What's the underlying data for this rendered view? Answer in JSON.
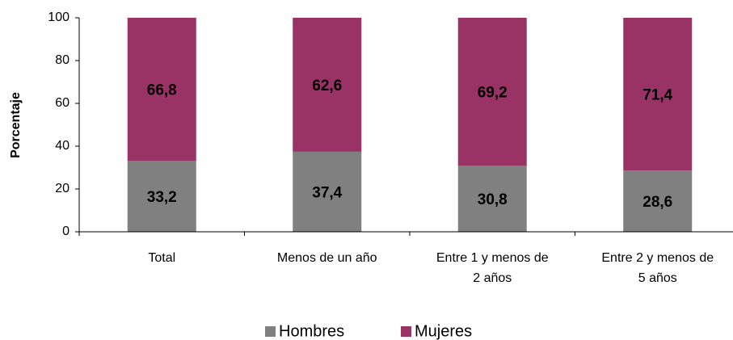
{
  "chart_data": {
    "type": "stacked_bar",
    "y_label": "Porcentaje",
    "categories": [
      "Total",
      "Menos de un año",
      "Entre 1 y menos de 2 años",
      "Entre 2 y menos de 5 años"
    ],
    "series": [
      {
        "name": "Hombres",
        "color": "#808080",
        "values": [
          33.2,
          37.4,
          30.8,
          28.6
        ],
        "value_labels": [
          "33,2",
          "37,4",
          "30,8",
          "28,6"
        ]
      },
      {
        "name": "Mujeres",
        "color": "#993366",
        "values": [
          66.8,
          62.6,
          69.2,
          71.4
        ],
        "value_labels": [
          "66,8",
          "62,6",
          "69,2",
          "71,4"
        ]
      }
    ],
    "ylim": [
      0,
      100
    ],
    "yticks": [
      0,
      20,
      40,
      60,
      80,
      100
    ],
    "legend": "bottom"
  }
}
